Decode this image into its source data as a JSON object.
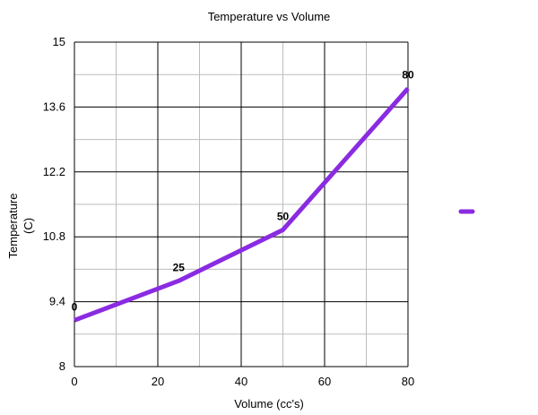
{
  "chart_data": {
    "type": "line",
    "title": "Temperature vs Volume",
    "xlabel": "Volume (cc's)",
    "ylabel": [
      "Temperature",
      "(C)"
    ],
    "xlim": [
      0,
      80
    ],
    "ylim": [
      8,
      15
    ],
    "x_ticks": [
      0,
      20,
      40,
      60,
      80
    ],
    "y_ticks": [
      8,
      9.4,
      10.8,
      12.2,
      13.6,
      15
    ],
    "x_tick_labels": [
      "0",
      "20",
      "40",
      "60",
      "80"
    ],
    "y_tick_labels": [
      "8",
      "9.4",
      "10.8",
      "12.2",
      "13.6",
      "15"
    ],
    "grid": true,
    "legend": "right",
    "series": [
      {
        "color": "#8a2be2",
        "points": [
          {
            "x": 0,
            "y": 9.0,
            "label": "0"
          },
          {
            "x": 25,
            "y": 9.85,
            "label": "25"
          },
          {
            "x": 50,
            "y": 10.95,
            "label": "50"
          },
          {
            "x": 80,
            "y": 14.0,
            "label": "80"
          }
        ]
      }
    ]
  }
}
